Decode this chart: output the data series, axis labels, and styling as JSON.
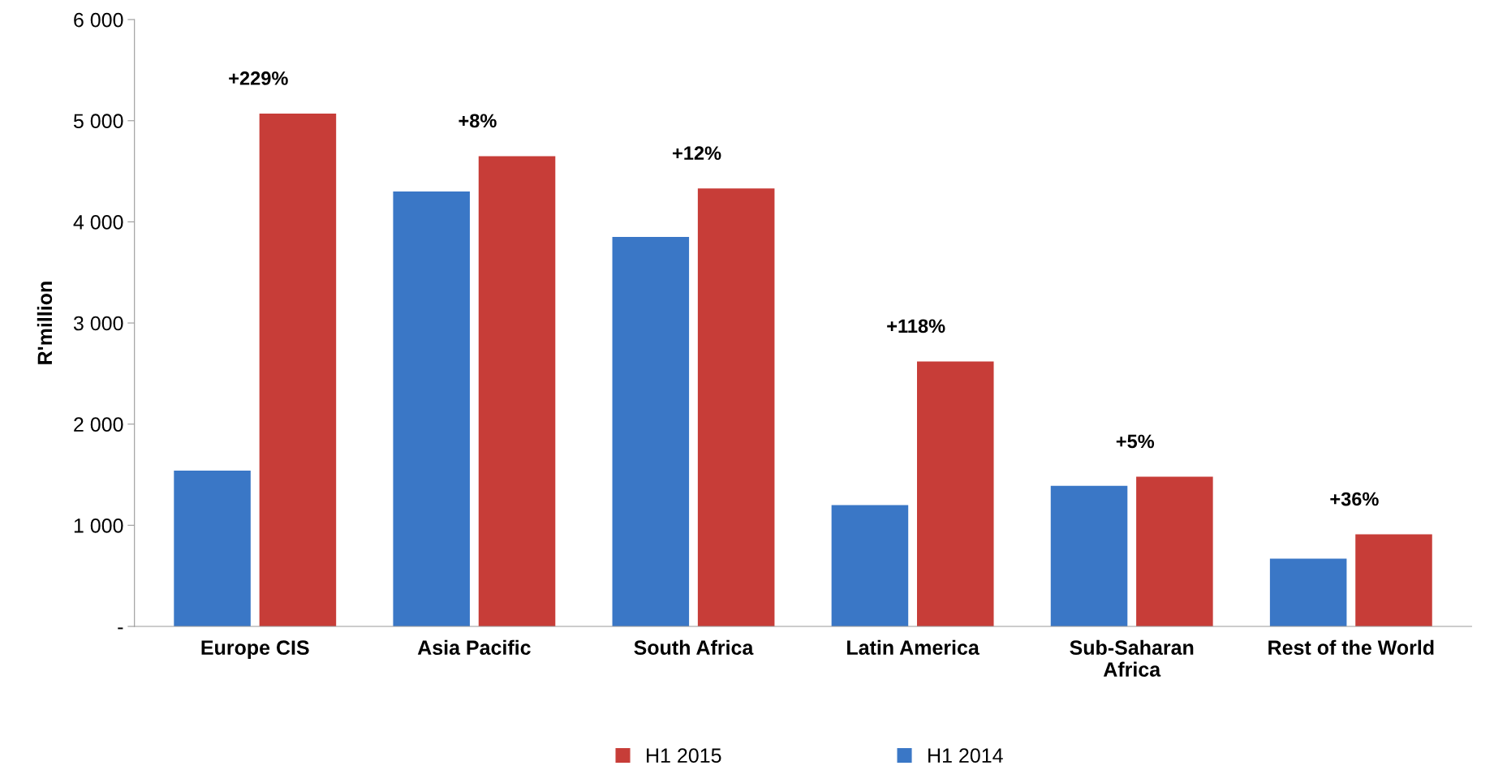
{
  "chart_data": {
    "type": "bar",
    "ylabel": "R'million",
    "categories": [
      "Europe CIS",
      "Asia Pacific",
      "South Africa",
      "Latin America",
      "Sub-Saharan\nAfrica",
      "Rest of the World"
    ],
    "series": [
      {
        "name": "H1 2014",
        "color": "#3a77c6",
        "values": [
          1540,
          4300,
          3850,
          1200,
          1390,
          670
        ]
      },
      {
        "name": "H1 2015",
        "color": "#c73d38",
        "values": [
          5070,
          4650,
          4330,
          2620,
          1480,
          910
        ]
      }
    ],
    "ylim": [
      0,
      6000
    ],
    "yticks": [
      {
        "value": 0,
        "label": "-"
      },
      {
        "value": 1000,
        "label": "1 000"
      },
      {
        "value": 2000,
        "label": "2 000"
      },
      {
        "value": 3000,
        "label": "3 000"
      },
      {
        "value": 4000,
        "label": "4 000"
      },
      {
        "value": 5000,
        "label": "5 000"
      },
      {
        "value": 6000,
        "label": "6 000"
      }
    ],
    "annotations": [
      "+229%",
      "+8%",
      "+12%",
      "+118%",
      "+5%",
      "+36%"
    ],
    "grid": false,
    "legend": "bottom"
  }
}
